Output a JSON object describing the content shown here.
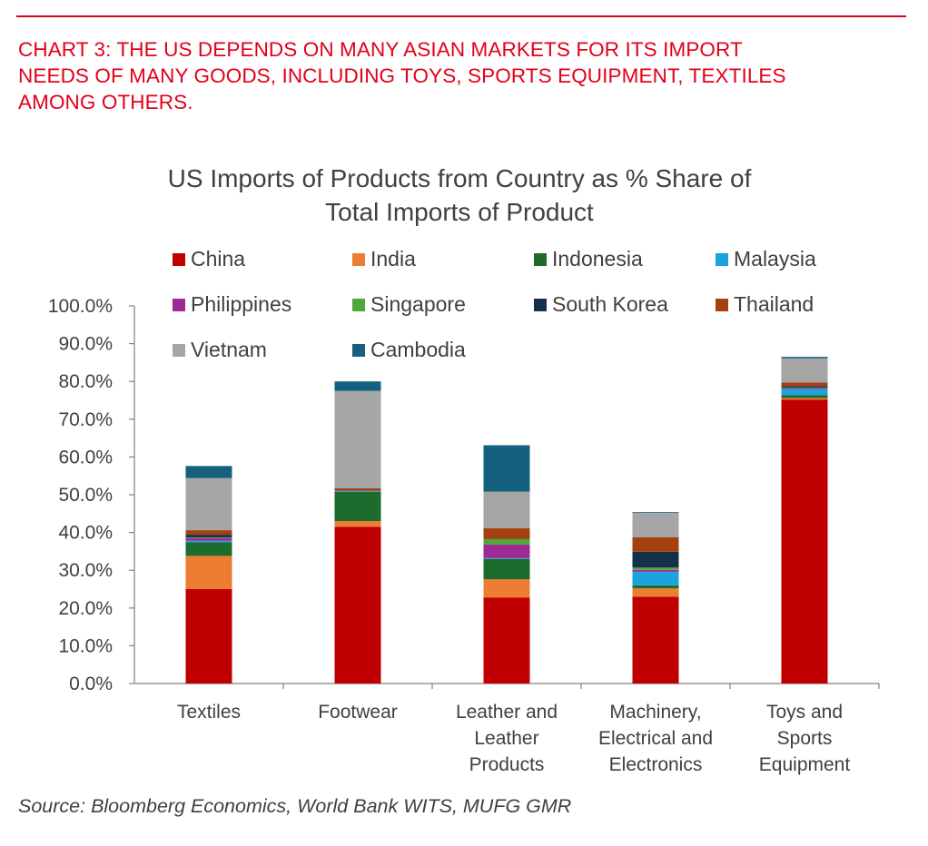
{
  "header": {
    "lines": [
      "CHART 3: THE US DEPENDS ON MANY ASIAN MARKETS FOR ITS IMPORT",
      "NEEDS OF MANY GOODS, INCLUDING TOYS, SPORTS EQUIPMENT, TEXTILES",
      "AMONG OTHERS."
    ]
  },
  "source": "Source: Bloomberg Economics, World Bank WITS, MUFG GMR",
  "colors": {
    "header": "#e2001a",
    "text": "#404040",
    "axis": "#808080"
  },
  "chart_data": {
    "type": "bar",
    "stacked": true,
    "title_lines": [
      "US Imports of Products from Country as % Share of",
      "Total Imports of Product"
    ],
    "categories": [
      [
        "Textiles"
      ],
      [
        "Footwear"
      ],
      [
        "Leather and",
        "Leather",
        "Products"
      ],
      [
        "Machinery,",
        "Electrical and",
        "Electronics"
      ],
      [
        "Toys and",
        "Sports",
        "Equipment"
      ]
    ],
    "ylim": [
      0,
      100
    ],
    "yticks": [
      "0.0%",
      "10.0%",
      "20.0%",
      "30.0%",
      "40.0%",
      "50.0%",
      "60.0%",
      "70.0%",
      "80.0%",
      "90.0%",
      "100.0%"
    ],
    "grid": false,
    "legend_position": "top",
    "series": [
      {
        "name": "China",
        "color": "#c00000",
        "values": [
          25.0,
          41.5,
          22.8,
          23.0,
          75.2
        ]
      },
      {
        "name": "India",
        "color": "#ed7d31",
        "values": [
          8.8,
          1.5,
          4.8,
          2.2,
          0.4
        ]
      },
      {
        "name": "Indonesia",
        "color": "#1e6b2e",
        "values": [
          3.6,
          7.8,
          5.4,
          0.8,
          0.8
        ]
      },
      {
        "name": "Malaysia",
        "color": "#1aa3dc",
        "values": [
          0.4,
          0.1,
          0.2,
          3.6,
          1.6
        ]
      },
      {
        "name": "Philippines",
        "color": "#9e2a96",
        "values": [
          0.7,
          0.1,
          3.6,
          0.5,
          0.2
        ]
      },
      {
        "name": "Singapore",
        "color": "#4ea83c",
        "values": [
          0.2,
          0.1,
          1.4,
          0.6,
          0.1
        ]
      },
      {
        "name": "South Korea",
        "color": "#15304b",
        "values": [
          0.7,
          0.1,
          0.1,
          4.2,
          0.4
        ]
      },
      {
        "name": "Thailand",
        "color": "#a5410e",
        "values": [
          1.2,
          0.5,
          2.8,
          3.8,
          1.0
        ]
      },
      {
        "name": "Vietnam",
        "color": "#a6a6a6",
        "values": [
          13.8,
          25.8,
          9.7,
          6.5,
          6.4
        ]
      },
      {
        "name": "Cambodia",
        "color": "#16607f",
        "values": [
          3.2,
          2.5,
          12.3,
          0.2,
          0.4
        ]
      }
    ]
  }
}
